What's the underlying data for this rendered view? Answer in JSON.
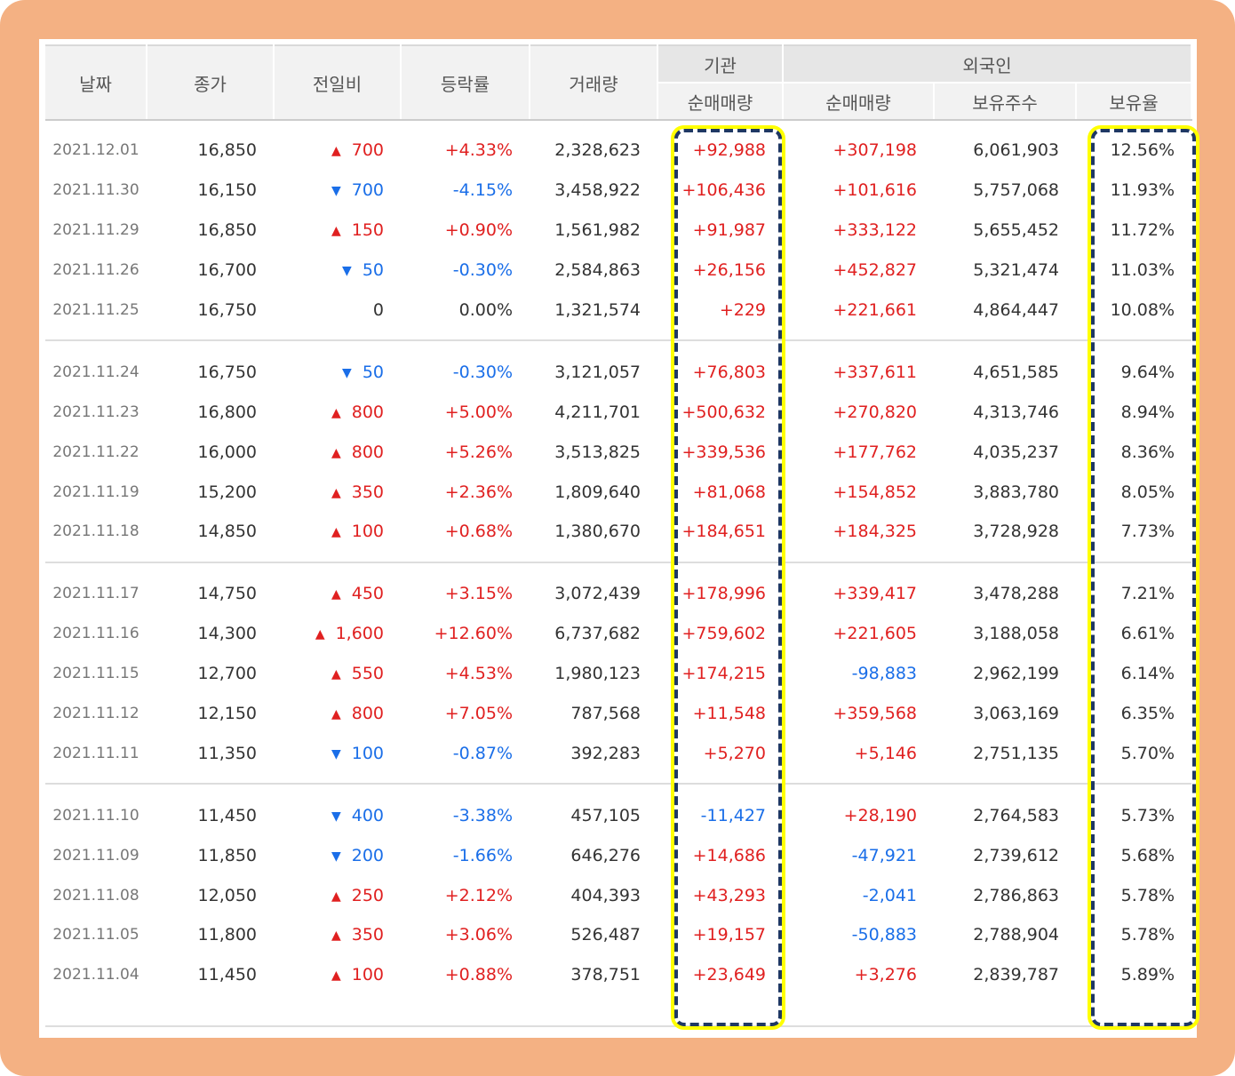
{
  "colors": {
    "frame": "#f4b183",
    "up": "#e02020",
    "down": "#1a6ee8",
    "highlight_border": "#1f3864",
    "highlight_outline": "#ffff00"
  },
  "header": {
    "date": "날짜",
    "close": "종가",
    "diff": "전일비",
    "rate": "등락률",
    "volume": "거래량",
    "institution_group": "기관",
    "foreign_group": "외국인",
    "inst_net": "순매매량",
    "foreign_net": "순매매량",
    "foreign_holdings": "보유주수",
    "foreign_ratio": "보유율"
  },
  "rows": [
    {
      "date": "2021.12.01",
      "close": "16,850",
      "dir": "up",
      "diff": "700",
      "rate": "+4.33%",
      "volume": "2,328,623",
      "inst": "+92,988",
      "inst_dir": "up",
      "fnet": "+307,198",
      "fnet_dir": "up",
      "fhold": "6,061,903",
      "fratio": "12.56%"
    },
    {
      "date": "2021.11.30",
      "close": "16,150",
      "dir": "down",
      "diff": "700",
      "rate": "-4.15%",
      "volume": "3,458,922",
      "inst": "+106,436",
      "inst_dir": "up",
      "fnet": "+101,616",
      "fnet_dir": "up",
      "fhold": "5,757,068",
      "fratio": "11.93%"
    },
    {
      "date": "2021.11.29",
      "close": "16,850",
      "dir": "up",
      "diff": "150",
      "rate": "+0.90%",
      "volume": "1,561,982",
      "inst": "+91,987",
      "inst_dir": "up",
      "fnet": "+333,122",
      "fnet_dir": "up",
      "fhold": "5,655,452",
      "fratio": "11.72%"
    },
    {
      "date": "2021.11.26",
      "close": "16,700",
      "dir": "down",
      "diff": "50",
      "rate": "-0.30%",
      "volume": "2,584,863",
      "inst": "+26,156",
      "inst_dir": "up",
      "fnet": "+452,827",
      "fnet_dir": "up",
      "fhold": "5,321,474",
      "fratio": "11.03%"
    },
    {
      "date": "2021.11.25",
      "close": "16,750",
      "dir": "flat",
      "diff": "0",
      "rate": "0.00%",
      "volume": "1,321,574",
      "inst": "+229",
      "inst_dir": "up",
      "fnet": "+221,661",
      "fnet_dir": "up",
      "fhold": "4,864,447",
      "fratio": "10.08%"
    },
    {
      "date": "2021.11.24",
      "close": "16,750",
      "dir": "down",
      "diff": "50",
      "rate": "-0.30%",
      "volume": "3,121,057",
      "inst": "+76,803",
      "inst_dir": "up",
      "fnet": "+337,611",
      "fnet_dir": "up",
      "fhold": "4,651,585",
      "fratio": "9.64%"
    },
    {
      "date": "2021.11.23",
      "close": "16,800",
      "dir": "up",
      "diff": "800",
      "rate": "+5.00%",
      "volume": "4,211,701",
      "inst": "+500,632",
      "inst_dir": "up",
      "fnet": "+270,820",
      "fnet_dir": "up",
      "fhold": "4,313,746",
      "fratio": "8.94%"
    },
    {
      "date": "2021.11.22",
      "close": "16,000",
      "dir": "up",
      "diff": "800",
      "rate": "+5.26%",
      "volume": "3,513,825",
      "inst": "+339,536",
      "inst_dir": "up",
      "fnet": "+177,762",
      "fnet_dir": "up",
      "fhold": "4,035,237",
      "fratio": "8.36%"
    },
    {
      "date": "2021.11.19",
      "close": "15,200",
      "dir": "up",
      "diff": "350",
      "rate": "+2.36%",
      "volume": "1,809,640",
      "inst": "+81,068",
      "inst_dir": "up",
      "fnet": "+154,852",
      "fnet_dir": "up",
      "fhold": "3,883,780",
      "fratio": "8.05%"
    },
    {
      "date": "2021.11.18",
      "close": "14,850",
      "dir": "up",
      "diff": "100",
      "rate": "+0.68%",
      "volume": "1,380,670",
      "inst": "+184,651",
      "inst_dir": "up",
      "fnet": "+184,325",
      "fnet_dir": "up",
      "fhold": "3,728,928",
      "fratio": "7.73%"
    },
    {
      "date": "2021.11.17",
      "close": "14,750",
      "dir": "up",
      "diff": "450",
      "rate": "+3.15%",
      "volume": "3,072,439",
      "inst": "+178,996",
      "inst_dir": "up",
      "fnet": "+339,417",
      "fnet_dir": "up",
      "fhold": "3,478,288",
      "fratio": "7.21%"
    },
    {
      "date": "2021.11.16",
      "close": "14,300",
      "dir": "up",
      "diff": "1,600",
      "rate": "+12.60%",
      "volume": "6,737,682",
      "inst": "+759,602",
      "inst_dir": "up",
      "fnet": "+221,605",
      "fnet_dir": "up",
      "fhold": "3,188,058",
      "fratio": "6.61%"
    },
    {
      "date": "2021.11.15",
      "close": "12,700",
      "dir": "up",
      "diff": "550",
      "rate": "+4.53%",
      "volume": "1,980,123",
      "inst": "+174,215",
      "inst_dir": "up",
      "fnet": "-98,883",
      "fnet_dir": "down",
      "fhold": "2,962,199",
      "fratio": "6.14%"
    },
    {
      "date": "2021.11.12",
      "close": "12,150",
      "dir": "up",
      "diff": "800",
      "rate": "+7.05%",
      "volume": "787,568",
      "inst": "+11,548",
      "inst_dir": "up",
      "fnet": "+359,568",
      "fnet_dir": "up",
      "fhold": "3,063,169",
      "fratio": "6.35%"
    },
    {
      "date": "2021.11.11",
      "close": "11,350",
      "dir": "down",
      "diff": "100",
      "rate": "-0.87%",
      "volume": "392,283",
      "inst": "+5,270",
      "inst_dir": "up",
      "fnet": "+5,146",
      "fnet_dir": "up",
      "fhold": "2,751,135",
      "fratio": "5.70%"
    },
    {
      "date": "2021.11.10",
      "close": "11,450",
      "dir": "down",
      "diff": "400",
      "rate": "-3.38%",
      "volume": "457,105",
      "inst": "-11,427",
      "inst_dir": "down",
      "fnet": "+28,190",
      "fnet_dir": "up",
      "fhold": "2,764,583",
      "fratio": "5.73%"
    },
    {
      "date": "2021.11.09",
      "close": "11,850",
      "dir": "down",
      "diff": "200",
      "rate": "-1.66%",
      "volume": "646,276",
      "inst": "+14,686",
      "inst_dir": "up",
      "fnet": "-47,921",
      "fnet_dir": "down",
      "fhold": "2,739,612",
      "fratio": "5.68%"
    },
    {
      "date": "2021.11.08",
      "close": "12,050",
      "dir": "up",
      "diff": "250",
      "rate": "+2.12%",
      "volume": "404,393",
      "inst": "+43,293",
      "inst_dir": "up",
      "fnet": "-2,041",
      "fnet_dir": "down",
      "fhold": "2,786,863",
      "fratio": "5.78%"
    },
    {
      "date": "2021.11.05",
      "close": "11,800",
      "dir": "up",
      "diff": "350",
      "rate": "+3.06%",
      "volume": "526,487",
      "inst": "+19,157",
      "inst_dir": "up",
      "fnet": "-50,883",
      "fnet_dir": "down",
      "fhold": "2,788,904",
      "fratio": "5.78%"
    },
    {
      "date": "2021.11.04",
      "close": "11,450",
      "dir": "up",
      "diff": "100",
      "rate": "+0.88%",
      "volume": "378,751",
      "inst": "+23,649",
      "inst_dir": "up",
      "fnet": "+3,276",
      "fnet_dir": "up",
      "fhold": "2,839,787",
      "fratio": "5.89%"
    }
  ]
}
